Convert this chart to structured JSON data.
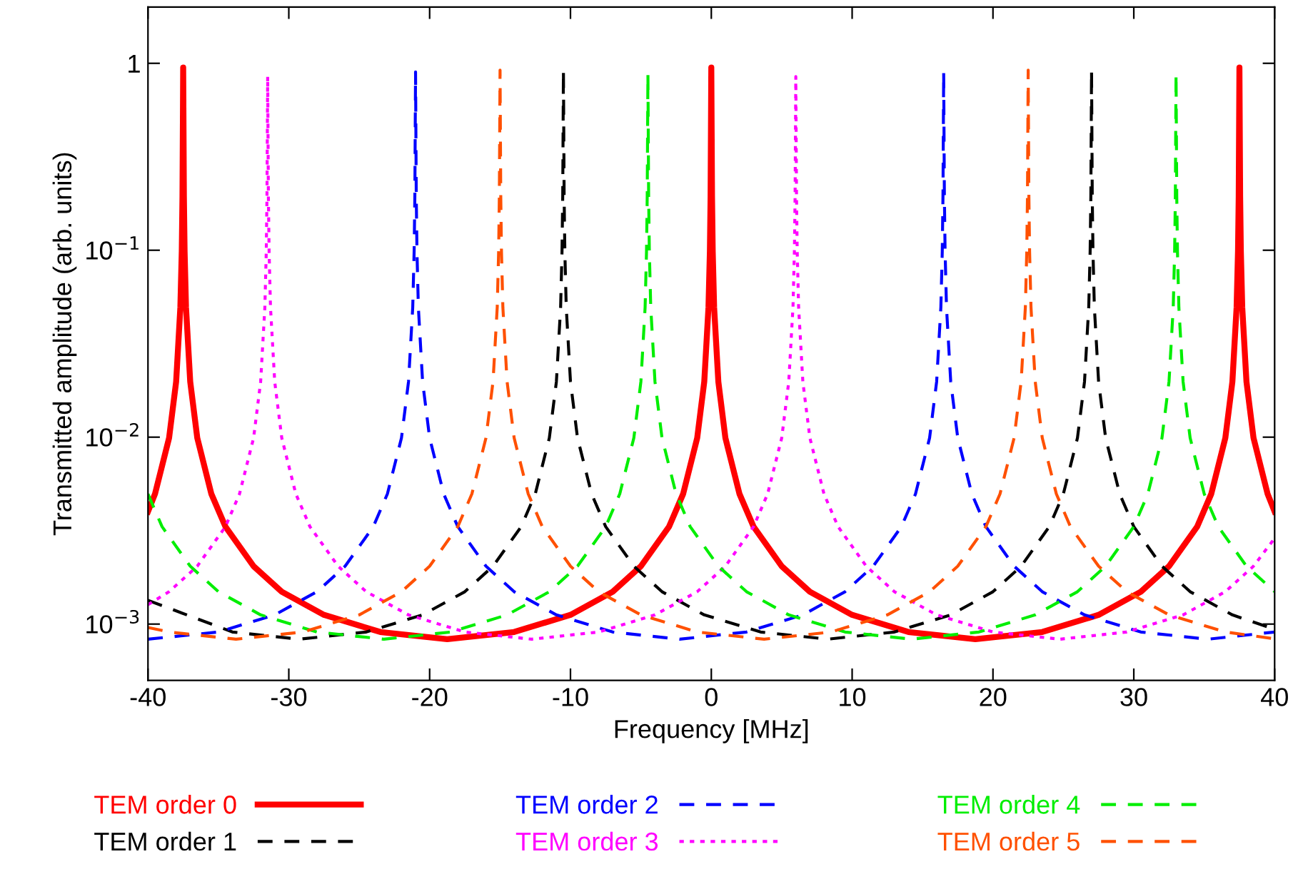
{
  "chart_data": {
    "type": "line",
    "xlabel": "Frequency [MHz]",
    "ylabel": "Transmitted amplitude (arb. units)",
    "log": "y",
    "xlim": [
      -40,
      40
    ],
    "xticks": [
      -40,
      -30,
      -20,
      -10,
      0,
      10,
      20,
      30,
      40
    ],
    "ylim": [
      0.0005,
      2
    ],
    "yticks": [
      {
        "value": 0.001,
        "label": "10$^{−3}$"
      },
      {
        "value": 0.01,
        "label": "10$^{−2}$"
      },
      {
        "value": 0.1,
        "label": "10$^{−1}$"
      },
      1
    ],
    "grid": false,
    "legend": "bottom",
    "series": [
      {
        "name": "TEM order 0",
        "color": "#ff0000",
        "line_style": "solid",
        "x": [
          -40,
          -39.5,
          -38.5,
          -38,
          -37.7,
          -37.6,
          -37.55,
          -37.5,
          -37.45,
          -37.4,
          -37.3,
          -37,
          -36.5,
          -35.5,
          -34.5,
          -32.5,
          -30.5,
          -27.5,
          -23.5,
          -18.75,
          -14,
          -10,
          -7,
          -5,
          -3,
          -2,
          -1,
          -0.5,
          -0.2,
          -0.1,
          -0.05,
          0,
          0.05,
          0.1,
          0.2,
          0.5,
          1,
          2,
          3,
          5,
          7,
          10,
          14,
          18.75,
          23.5,
          27.5,
          30.5,
          32.5,
          34.5,
          35.5,
          36.5,
          37,
          37.3,
          37.4,
          37.45,
          37.5,
          37.55,
          37.6,
          37.7,
          38,
          38.5,
          39.5,
          40
        ],
        "values": [
          0.004,
          0.00497,
          0.0099,
          0.0198,
          0.0495,
          0.0988,
          0.195,
          0.95,
          0.195,
          0.0988,
          0.0495,
          0.0198,
          0.0099,
          0.00497,
          0.00332,
          0.00204,
          0.00149,
          0.00112,
          0.000907,
          0.00083,
          0.000907,
          0.00112,
          0.00149,
          0.00204,
          0.00332,
          0.00497,
          0.0099,
          0.0198,
          0.0495,
          0.0988,
          0.195,
          0.95,
          0.195,
          0.0988,
          0.0495,
          0.0198,
          0.0099,
          0.00497,
          0.00332,
          0.00204,
          0.00149,
          0.00112,
          0.000907,
          0.00083,
          0.000907,
          0.00112,
          0.00149,
          0.00204,
          0.00332,
          0.00497,
          0.0099,
          0.0198,
          0.0495,
          0.0988,
          0.195,
          0.95,
          0.195,
          0.0988,
          0.0495,
          0.0198,
          0.0099,
          0.00497,
          0.004
        ]
      },
      {
        "name": "TEM order 1",
        "color": "#000000",
        "line_style": "dashed",
        "x": [
          -40,
          -34,
          -29.25,
          -24.5,
          -20.5,
          -17.5,
          -15.5,
          -13.5,
          -12.5,
          -11.5,
          -11,
          -10.7,
          -10.6,
          -10.55,
          -10.5,
          -10.45,
          -10.4,
          -10.3,
          -10,
          -9.5,
          -8.5,
          -7.5,
          -5.5,
          -3.5,
          -0.5,
          3.5,
          8.25,
          13,
          17,
          20,
          22,
          24,
          25,
          26,
          26.5,
          26.8,
          26.9,
          26.95,
          27,
          27.05,
          27.1,
          27.2,
          27.5,
          28,
          29,
          30,
          32,
          34,
          37,
          40
        ],
        "values": [
          0.00134,
          0.000907,
          0.00083,
          0.000907,
          0.00112,
          0.00149,
          0.00204,
          0.00332,
          0.00497,
          0.0099,
          0.0198,
          0.0495,
          0.0988,
          0.195,
          0.92,
          0.195,
          0.0988,
          0.0495,
          0.0198,
          0.0099,
          0.00497,
          0.00332,
          0.00204,
          0.00149,
          0.00112,
          0.000907,
          0.00083,
          0.000907,
          0.00112,
          0.00149,
          0.00204,
          0.00332,
          0.00497,
          0.0099,
          0.0198,
          0.0495,
          0.0988,
          0.195,
          0.92,
          0.195,
          0.0988,
          0.0495,
          0.0198,
          0.0099,
          0.00497,
          0.00332,
          0.00204,
          0.00149,
          0.00112,
          0.000937
        ]
      },
      {
        "name": "TEM order 2",
        "color": "#0000ff",
        "line_style": "dashed",
        "x": [
          -40,
          -35,
          -31,
          -28,
          -26,
          -24,
          -23,
          -22,
          -21.5,
          -21.2,
          -21.1,
          -21.05,
          -21,
          -20.95,
          -20.9,
          -20.8,
          -20.5,
          -20,
          -19,
          -18,
          -16,
          -14,
          -11,
          -7,
          -2.25,
          2.5,
          6.5,
          9.5,
          11.5,
          13.5,
          14.5,
          15.5,
          16,
          16.3,
          16.4,
          16.45,
          16.5,
          16.55,
          16.6,
          16.7,
          17,
          17.5,
          18.5,
          19.5,
          21.5,
          23.5,
          26.5,
          30.5,
          35.25,
          40
        ],
        "values": [
          0.00083,
          0.000907,
          0.00112,
          0.00149,
          0.00204,
          0.00332,
          0.00497,
          0.0099,
          0.0198,
          0.0495,
          0.0988,
          0.195,
          0.9,
          0.195,
          0.0988,
          0.0495,
          0.0198,
          0.0099,
          0.00497,
          0.00332,
          0.00204,
          0.00149,
          0.00112,
          0.000907,
          0.00083,
          0.000907,
          0.00112,
          0.00149,
          0.00204,
          0.00332,
          0.00497,
          0.0099,
          0.0198,
          0.0495,
          0.0988,
          0.195,
          0.9,
          0.195,
          0.0988,
          0.0495,
          0.0198,
          0.0099,
          0.00497,
          0.00332,
          0.00204,
          0.00149,
          0.00112,
          0.000907,
          0.00083,
          0.000907
        ]
      },
      {
        "name": "TEM order 3",
        "color": "#ff00ff",
        "line_style": "dotted",
        "x": [
          -40,
          -38.5,
          -36.5,
          -34.5,
          -33.5,
          -32.5,
          -32,
          -31.7,
          -31.6,
          -31.55,
          -31.5,
          -31.45,
          -31.4,
          -31.3,
          -31,
          -30.5,
          -29.5,
          -28.5,
          -26.5,
          -24.5,
          -21.5,
          -17.5,
          -12.75,
          -8,
          -4,
          -1,
          1,
          3,
          4,
          5,
          5.5,
          5.8,
          5.9,
          5.95,
          6,
          6.05,
          6.1,
          6.2,
          6.5,
          7,
          8,
          9,
          11,
          13,
          16,
          20,
          24.75,
          29.5,
          33.5,
          36.5,
          38.5,
          40
        ],
        "values": [
          0.00127,
          0.00149,
          0.00204,
          0.00332,
          0.00497,
          0.0099,
          0.0198,
          0.0495,
          0.0988,
          0.195,
          0.85,
          0.195,
          0.0988,
          0.0495,
          0.0198,
          0.0099,
          0.00497,
          0.00332,
          0.00204,
          0.00149,
          0.00112,
          0.000907,
          0.00083,
          0.000907,
          0.00112,
          0.00149,
          0.00204,
          0.00332,
          0.00497,
          0.0099,
          0.0198,
          0.0495,
          0.0988,
          0.195,
          0.85,
          0.195,
          0.0988,
          0.0495,
          0.0198,
          0.0099,
          0.00497,
          0.00332,
          0.00204,
          0.00149,
          0.00112,
          0.000907,
          0.00083,
          0.000907,
          0.00112,
          0.00149,
          0.00204,
          0.00288
        ]
      },
      {
        "name": "TEM order 4",
        "color": "#00ee00",
        "line_style": "dashed",
        "x": [
          -40,
          -39,
          -37,
          -35,
          -32,
          -28,
          -23.25,
          -18.5,
          -14.5,
          -11.5,
          -9.5,
          -7.5,
          -6.5,
          -5.5,
          -5,
          -4.7,
          -4.6,
          -4.55,
          -4.5,
          -4.45,
          -4.4,
          -4.3,
          -4,
          -3.5,
          -2.5,
          -1.5,
          0.5,
          2.5,
          5.5,
          9.5,
          14.25,
          19,
          23,
          26,
          28,
          30,
          31,
          32,
          32.5,
          32.8,
          32.9,
          32.95,
          33,
          33.05,
          33.1,
          33.2,
          33.5,
          34,
          35,
          36,
          38,
          40
        ],
        "values": [
          0.00497,
          0.00332,
          0.00204,
          0.00149,
          0.00112,
          0.000907,
          0.00083,
          0.000907,
          0.00112,
          0.00149,
          0.00204,
          0.00332,
          0.00497,
          0.0099,
          0.0198,
          0.0495,
          0.0988,
          0.195,
          0.88,
          0.195,
          0.0988,
          0.0495,
          0.0198,
          0.0099,
          0.00497,
          0.00332,
          0.00204,
          0.00149,
          0.00112,
          0.000907,
          0.00083,
          0.000907,
          0.00112,
          0.00149,
          0.00204,
          0.00332,
          0.00497,
          0.0099,
          0.0198,
          0.0495,
          0.0988,
          0.195,
          0.88,
          0.195,
          0.0988,
          0.0495,
          0.0198,
          0.0099,
          0.00497,
          0.00332,
          0.00204,
          0.00149
        ]
      },
      {
        "name": "TEM order 5",
        "color": "#ff5000",
        "line_style": "dashed",
        "x": [
          -40,
          -38.5,
          -33.75,
          -29,
          -25,
          -22,
          -20,
          -18,
          -17,
          -16,
          -15.5,
          -15.2,
          -15.1,
          -15.05,
          -15,
          -14.95,
          -14.9,
          -14.8,
          -14.5,
          -14,
          -13,
          -12,
          -10,
          -8,
          -5,
          -1,
          3.75,
          8.5,
          12.5,
          15.5,
          17.5,
          19.5,
          20.5,
          21.5,
          22,
          22.3,
          22.4,
          22.45,
          22.5,
          22.55,
          22.6,
          22.7,
          23,
          23.5,
          24.5,
          25.5,
          27.5,
          29.5,
          32.5,
          36.5,
          40
        ],
        "values": [
          0.000959,
          0.000907,
          0.00083,
          0.000907,
          0.00112,
          0.00149,
          0.00204,
          0.00332,
          0.00497,
          0.0099,
          0.0198,
          0.0495,
          0.0988,
          0.195,
          0.92,
          0.195,
          0.0988,
          0.0495,
          0.0198,
          0.0099,
          0.00497,
          0.00332,
          0.00204,
          0.00149,
          0.00112,
          0.000907,
          0.00083,
          0.000907,
          0.00112,
          0.00149,
          0.00204,
          0.00332,
          0.00497,
          0.0099,
          0.0198,
          0.0495,
          0.0988,
          0.195,
          0.92,
          0.195,
          0.0988,
          0.0495,
          0.0198,
          0.0099,
          0.00497,
          0.00332,
          0.00204,
          0.00149,
          0.00112,
          0.000907,
          0.000834
        ]
      }
    ]
  }
}
